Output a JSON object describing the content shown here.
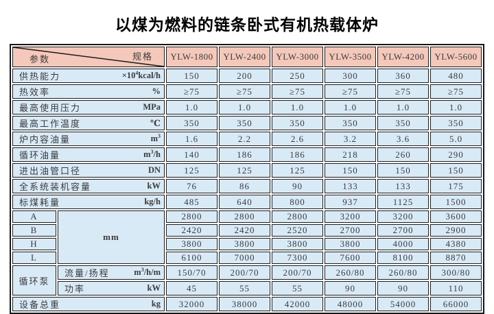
{
  "page": {
    "title": "以煤为燃料的链条卧式有机热载体炉"
  },
  "colors": {
    "header_bg": "#f4c8ba",
    "cell_bg": "#d9eaf7",
    "border": "#1c1c1c",
    "text": "#3b3b3b"
  },
  "table": {
    "corner": {
      "top_right": "规格",
      "bottom_left": "参数"
    },
    "models": [
      "YLW-1800",
      "YLW-2400",
      "YLW-3000",
      "YLW-3500",
      "YLW-4200",
      "YLW-5600"
    ],
    "rows": [
      {
        "type": "simple",
        "label": "供热能力",
        "unit": {
          "pre": "×10",
          "sup": "4",
          "post": "kcal/h"
        },
        "values": [
          "150",
          "200",
          "250",
          "300",
          "360",
          "480"
        ]
      },
      {
        "type": "simple",
        "label": "热效率",
        "unit": {
          "pre": "%"
        },
        "values": [
          "≥75",
          "≥75",
          "≥75",
          "≥75",
          "≥75",
          "≥75"
        ]
      },
      {
        "type": "simple",
        "label": "最高使用压力",
        "unit": {
          "pre": "MPa"
        },
        "values": [
          "1.0",
          "1.0",
          "1.0",
          "1.0",
          "1.0",
          "1.0"
        ]
      },
      {
        "type": "simple",
        "label": "最高工作温度",
        "unit": {
          "pre": "℃"
        },
        "values": [
          "350",
          "350",
          "350",
          "350",
          "350",
          "350"
        ]
      },
      {
        "type": "simple",
        "label": "炉内容油量",
        "unit": {
          "pre": "m",
          "sup": "3"
        },
        "values": [
          "1.6",
          "2.2",
          "2.6",
          "3.2",
          "3.6",
          "5.0"
        ]
      },
      {
        "type": "simple",
        "label": "循环油量",
        "unit": {
          "pre": "m",
          "sup": "3",
          "post": "/h"
        },
        "values": [
          "140",
          "186",
          "186",
          "218",
          "260",
          "290"
        ]
      },
      {
        "type": "simple",
        "label": "进出油管口径",
        "unit": {
          "pre": "DN"
        },
        "values": [
          "125",
          "125",
          "125",
          "150",
          "150",
          "150"
        ]
      },
      {
        "type": "simple",
        "label": "全系统装机容量",
        "unit": {
          "pre": "kW"
        },
        "values": [
          "76",
          "86",
          "90",
          "133",
          "133",
          "175"
        ]
      },
      {
        "type": "simple",
        "label": "标煤耗量",
        "unit": {
          "pre": "kg/h"
        },
        "values": [
          "485",
          "640",
          "800",
          "937",
          "1125",
          "1500"
        ]
      },
      {
        "type": "dim",
        "label": "A",
        "group_unit": "mm",
        "group_span": 4,
        "values": [
          "2800",
          "2800",
          "2800",
          "3200",
          "3200",
          "3600"
        ]
      },
      {
        "type": "dim",
        "label": "B",
        "values": [
          "2420",
          "2420",
          "2520",
          "2700",
          "2700",
          "2900"
        ]
      },
      {
        "type": "dim",
        "label": "H",
        "values": [
          "3800",
          "3800",
          "3800",
          "3800",
          "4000",
          "4380"
        ]
      },
      {
        "type": "dim",
        "label": "L",
        "values": [
          "6100",
          "7000",
          "7300",
          "7600",
          "8100",
          "8870"
        ]
      },
      {
        "type": "pump",
        "group": "循环泵",
        "group_span": 2,
        "label": "流量/扬程",
        "unit": {
          "pre": "m",
          "sup": "3",
          "post": "/h/m"
        },
        "values": [
          "150/70",
          "200/70",
          "200/70",
          "260/80",
          "260/80",
          "300/80"
        ]
      },
      {
        "type": "pump2",
        "label": "功率",
        "unit": {
          "pre": "kW"
        },
        "values": [
          "45",
          "55",
          "55",
          "90",
          "90",
          "110"
        ]
      },
      {
        "type": "simple",
        "label": "设备总重",
        "unit": {
          "pre": "kg"
        },
        "values": [
          "32000",
          "38000",
          "42000",
          "48000",
          "54000",
          "66000"
        ]
      }
    ]
  }
}
